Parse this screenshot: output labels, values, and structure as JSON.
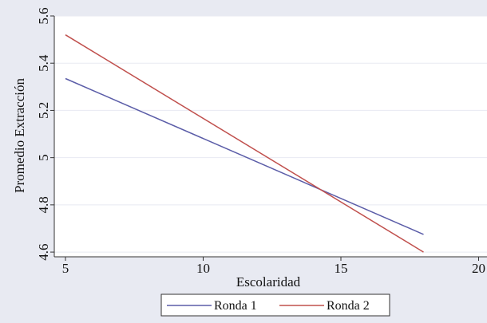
{
  "chart_data": {
    "type": "line",
    "title": "",
    "xlabel": "Escolaridad",
    "ylabel": "Promedio Extracción",
    "xlim": [
      5,
      20
    ],
    "ylim": [
      4.58,
      5.6
    ],
    "xticks": [
      5,
      10,
      15,
      20
    ],
    "xtick_labels": [
      "5",
      "10",
      "15",
      "20"
    ],
    "yticks": [
      4.6,
      4.8,
      5.0,
      5.2,
      5.4,
      5.6
    ],
    "ytick_labels": [
      "4.6",
      "4.8",
      "5",
      "5.2",
      "5.4",
      "5.6"
    ],
    "grid": true,
    "legend_position": "bottom",
    "series": [
      {
        "name": "Ronda 1",
        "color": "#5b5da8",
        "x": [
          5,
          18
        ],
        "y": [
          5.335,
          4.675
        ]
      },
      {
        "name": "Ronda 2",
        "color": "#c0504d",
        "x": [
          5,
          18
        ],
        "y": [
          5.52,
          4.6
        ]
      }
    ]
  },
  "colors": {
    "outer_background": "#e8eaf2",
    "plot_background": "#ffffff",
    "grid": "#e8eaf2"
  }
}
